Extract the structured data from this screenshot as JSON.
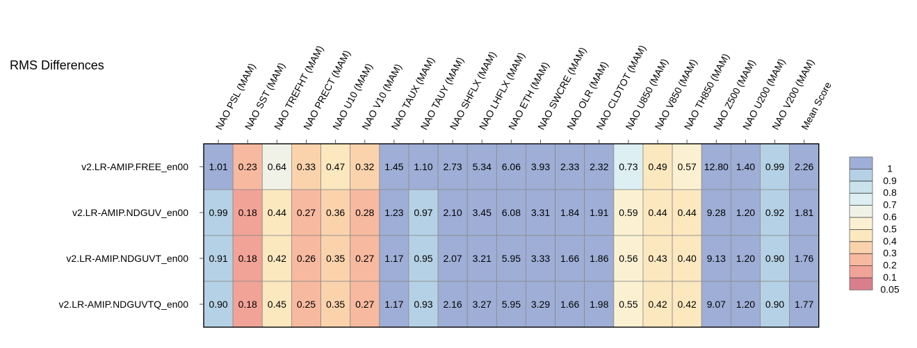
{
  "title": "RMS Differences",
  "chart_data": {
    "type": "heatmap",
    "title": "RMS Differences",
    "columns": [
      "NAO PSL (MAM)",
      "NAO SST (MAM)",
      "NAO TREFHT (MAM)",
      "NAO PRECT (MAM)",
      "NAO U10 (MAM)",
      "NAO V10 (MAM)",
      "NAO TAUX (MAM)",
      "NAO TAUY (MAM)",
      "NAO SHFLX (MAM)",
      "NAO LHFLX (MAM)",
      "NAO ETH (MAM)",
      "NAO SWCRE (MAM)",
      "NAO OLR (MAM)",
      "NAO CLDTOT (MAM)",
      "NAO U850 (MAM)",
      "NAO V850 (MAM)",
      "NAO TH850 (MAM)",
      "NAO Z500 (MAM)",
      "NAO U200 (MAM)",
      "NAO V200 (MAM)",
      "Mean Score"
    ],
    "rows": [
      "v2.LR-AMIP.FREE_en00",
      "v2.LR-AMIP.NDGUV_en00",
      "v2.LR-AMIP.NDGUVT_en00",
      "v2.LR-AMIP.NDGUVTQ_en00"
    ],
    "values": [
      [
        1.01,
        0.23,
        0.64,
        0.33,
        0.47,
        0.32,
        1.45,
        1.1,
        2.73,
        5.34,
        6.06,
        3.93,
        2.33,
        2.32,
        0.73,
        0.49,
        0.57,
        12.8,
        1.4,
        0.99,
        2.26
      ],
      [
        0.99,
        0.18,
        0.44,
        0.27,
        0.36,
        0.28,
        1.23,
        0.97,
        2.1,
        3.45,
        6.08,
        3.31,
        1.84,
        1.91,
        0.59,
        0.44,
        0.44,
        9.28,
        1.2,
        0.92,
        1.81
      ],
      [
        0.91,
        0.18,
        0.42,
        0.26,
        0.35,
        0.27,
        1.17,
        0.95,
        2.07,
        3.21,
        5.95,
        3.33,
        1.66,
        1.86,
        0.56,
        0.43,
        0.4,
        9.13,
        1.2,
        0.9,
        1.76
      ],
      [
        0.9,
        0.18,
        0.45,
        0.25,
        0.35,
        0.27,
        1.17,
        0.93,
        2.16,
        3.27,
        5.95,
        3.29,
        1.66,
        1.98,
        0.55,
        0.42,
        0.42,
        9.07,
        1.2,
        0.9,
        1.77
      ]
    ],
    "labels": [
      [
        "1.01",
        "0.23",
        "0.64",
        "0.33",
        "0.47",
        "0.32",
        "1.45",
        "1.10",
        "2.73",
        "5.34",
        "6.06",
        "3.93",
        "2.33",
        "2.32",
        "0.73",
        "0.49",
        "0.57",
        "12.80",
        "1.40",
        "0.99",
        "2.26"
      ],
      [
        "0.99",
        "0.18",
        "0.44",
        "0.27",
        "0.36",
        "0.28",
        "1.23",
        "0.97",
        "2.10",
        "3.45",
        "6.08",
        "3.31",
        "1.84",
        "1.91",
        "0.59",
        "0.44",
        "0.44",
        "9.28",
        "1.20",
        "0.92",
        "1.81"
      ],
      [
        "0.91",
        "0.18",
        "0.42",
        "0.26",
        "0.35",
        "0.27",
        "1.17",
        "0.95",
        "2.07",
        "3.21",
        "5.95",
        "3.33",
        "1.66",
        "1.86",
        "0.56",
        "0.43",
        "0.40",
        "9.13",
        "1.20",
        "0.90",
        "1.76"
      ],
      [
        "0.90",
        "0.18",
        "0.45",
        "0.25",
        "0.35",
        "0.27",
        "1.17",
        "0.93",
        "2.16",
        "3.27",
        "5.95",
        "3.29",
        "1.66",
        "1.98",
        "0.55",
        "0.42",
        "0.42",
        "9.07",
        "1.20",
        "0.90",
        "1.77"
      ]
    ],
    "colorbar": {
      "levels": [
        "1",
        "0.9",
        "0.8",
        "0.7",
        "0.6",
        "0.5",
        "0.4",
        "0.3",
        "0.2",
        "0.1",
        "0.05"
      ],
      "colors": [
        "#9eaed6",
        "#b5d1e5",
        "#c9e2ec",
        "#ddeff3",
        "#f0f2e8",
        "#fbf1d2",
        "#fce8bf",
        "#fad3ad",
        "#f7b99f",
        "#f2a397",
        "#db7e8c"
      ]
    }
  }
}
